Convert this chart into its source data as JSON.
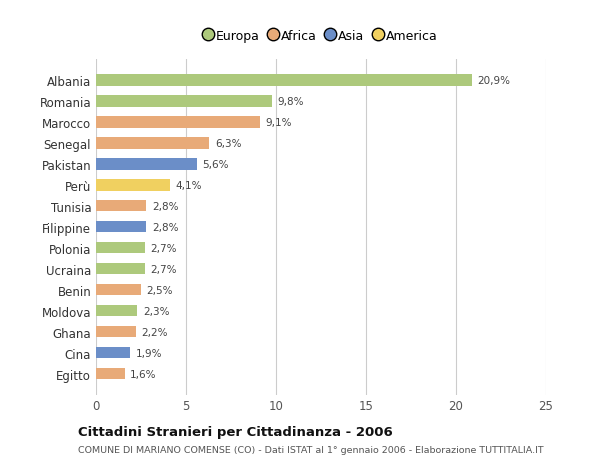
{
  "countries": [
    "Albania",
    "Romania",
    "Marocco",
    "Senegal",
    "Pakistan",
    "Perù",
    "Tunisia",
    "Filippine",
    "Polonia",
    "Ucraina",
    "Benin",
    "Moldova",
    "Ghana",
    "Cina",
    "Egitto"
  ],
  "values": [
    20.9,
    9.8,
    9.1,
    6.3,
    5.6,
    4.1,
    2.8,
    2.8,
    2.7,
    2.7,
    2.5,
    2.3,
    2.2,
    1.9,
    1.6
  ],
  "labels": [
    "20,9%",
    "9,8%",
    "9,1%",
    "6,3%",
    "5,6%",
    "4,1%",
    "2,8%",
    "2,8%",
    "2,7%",
    "2,7%",
    "2,5%",
    "2,3%",
    "2,2%",
    "1,9%",
    "1,6%"
  ],
  "continents": [
    "Europa",
    "Europa",
    "Africa",
    "Africa",
    "Asia",
    "America",
    "Africa",
    "Asia",
    "Europa",
    "Europa",
    "Africa",
    "Europa",
    "Africa",
    "Asia",
    "Africa"
  ],
  "continent_colors": {
    "Europa": "#adc97c",
    "Africa": "#e8aa78",
    "Asia": "#6b8ec8",
    "America": "#f0d060"
  },
  "legend_order": [
    "Europa",
    "Africa",
    "Asia",
    "America"
  ],
  "title": "Cittadini Stranieri per Cittadinanza - 2006",
  "subtitle": "COMUNE DI MARIANO COMENSE (CO) - Dati ISTAT al 1° gennaio 2006 - Elaborazione TUTTITALIA.IT",
  "xlim": [
    0,
    25
  ],
  "xticks": [
    0,
    5,
    10,
    15,
    20,
    25
  ],
  "background_color": "#ffffff",
  "grid_color": "#cccccc"
}
